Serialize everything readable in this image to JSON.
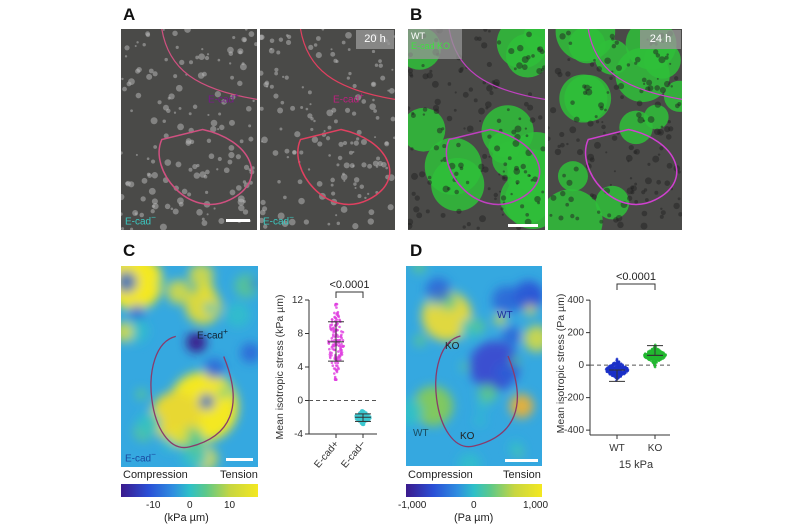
{
  "panels": {
    "A": {
      "label": "A",
      "time": "20 h",
      "region_left": "E-cad",
      "region_center": "E-cad",
      "region_center_sup": "+",
      "region_left_sup": "−"
    },
    "B": {
      "label": "B",
      "legend_wt": "WT",
      "legend_ko": "E-cad KO",
      "time": "24 h"
    },
    "C": {
      "label": "C",
      "region_plus": "E-cad",
      "region_plus_sup": "+",
      "region_minus": "E-cad",
      "region_minus_sup": "−",
      "colorbar": {
        "left": "Compression",
        "right": "Tension",
        "ticks": [
          "-10",
          "0",
          "10"
        ],
        "unit": "(kPa µm)"
      }
    },
    "D": {
      "label": "D",
      "regions": [
        "WT",
        "KO",
        "WT",
        "KO"
      ],
      "colorbar": {
        "left": "Compression",
        "right": "Tension",
        "ticks": [
          "-1,000",
          "0",
          "1,000"
        ],
        "unit": "(Pa µm)"
      }
    }
  },
  "colors": {
    "magenta": "#e040e0",
    "cyan": "#3cc8d0",
    "wt_blue": "#1a2fc8",
    "ko_green": "#22b830",
    "outline": "#8a3a6a"
  },
  "chart_data": [
    {
      "type": "scatter",
      "title": "",
      "ylabel": "Mean isotropic stress (kPa µm)",
      "ylim": [
        -4,
        12
      ],
      "yticks": [
        "-4",
        "0",
        "4",
        "8",
        "12"
      ],
      "yticks_values": [
        -4,
        0,
        4,
        8,
        12
      ],
      "categories": [
        "E-cad+",
        "E-cad−"
      ],
      "significance": "<0.0001",
      "series": [
        {
          "name": "E-cad+",
          "mean": 7.0,
          "sd_low": 4.7,
          "sd_high": 9.4,
          "min": 2.5,
          "max": 11.5,
          "color": "#e040e0"
        },
        {
          "name": "E-cad−",
          "mean": -2.0,
          "sd_low": -2.5,
          "sd_high": -1.6,
          "min": -2.9,
          "max": -1.2,
          "color": "#3cc8d0"
        }
      ]
    },
    {
      "type": "scatter",
      "title": "",
      "ylabel": "Mean isotropic stress (Pa µm)",
      "xlabel": "15 kPa",
      "ylim": [
        -430,
        450
      ],
      "yticks": [
        "-400",
        "-200",
        "0",
        "200",
        "400"
      ],
      "yticks_values": [
        -400,
        -200,
        0,
        200,
        400
      ],
      "categories": [
        "WT",
        "KO"
      ],
      "significance": "<0.0001",
      "series": [
        {
          "name": "WT",
          "mean": -30,
          "sd_low": -100,
          "sd_high": -30,
          "min": -410,
          "max": 90,
          "color": "#1a2fc8"
        },
        {
          "name": "KO",
          "mean": 60,
          "sd_low": 60,
          "sd_high": 120,
          "min": -100,
          "max": 400,
          "color": "#22b830"
        }
      ]
    }
  ]
}
